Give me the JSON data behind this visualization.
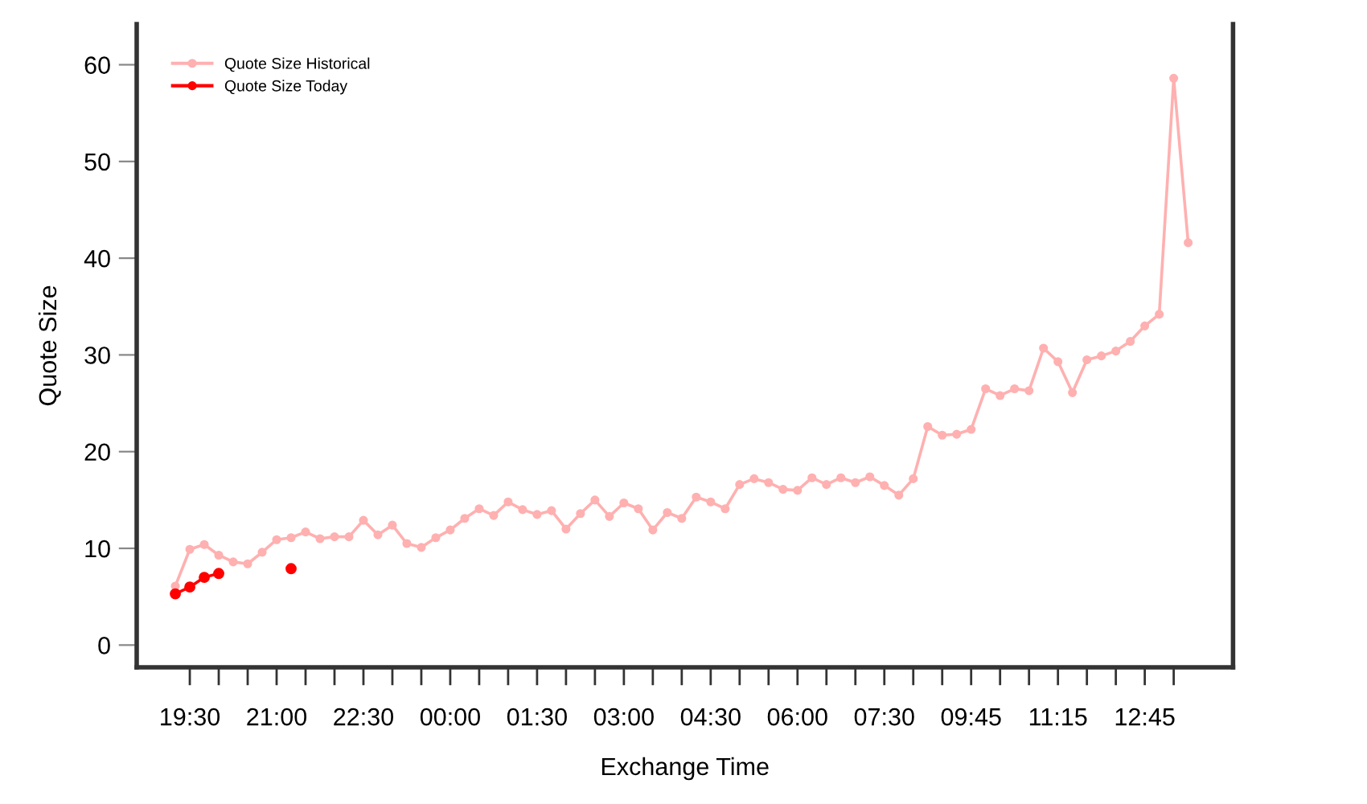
{
  "chart_data": {
    "type": "line",
    "xlabel": "Exchange Time",
    "ylabel": "Quote Size",
    "categories": [
      null,
      "19:30",
      null,
      null,
      null,
      null,
      null,
      "21:00",
      null,
      null,
      null,
      null,
      null,
      "22:30",
      null,
      null,
      null,
      null,
      null,
      "00:00",
      null,
      null,
      null,
      null,
      null,
      "01:30",
      null,
      null,
      null,
      null,
      null,
      "03:00",
      null,
      null,
      null,
      null,
      null,
      "04:30",
      null,
      null,
      null,
      null,
      null,
      "06:00",
      null,
      null,
      null,
      null,
      null,
      "07:30",
      null,
      null,
      null,
      null,
      null,
      "09:45",
      null,
      null,
      null,
      null,
      null,
      "11:15",
      null,
      null,
      null,
      null,
      null,
      "12:45",
      null,
      null,
      null
    ],
    "series": [
      {
        "name": "Quote Size Historical",
        "color": "#ffb0b0",
        "values": [
          6.1,
          9.9,
          10.4,
          9.3,
          8.6,
          8.4,
          9.6,
          10.9,
          11.1,
          11.7,
          11.0,
          11.2,
          11.2,
          12.9,
          11.4,
          12.4,
          10.5,
          10.1,
          11.1,
          11.9,
          13.1,
          14.1,
          13.4,
          14.8,
          14.0,
          13.5,
          13.9,
          12.0,
          13.6,
          15.0,
          13.3,
          14.7,
          14.1,
          11.9,
          13.7,
          13.1,
          15.3,
          14.8,
          14.1,
          16.6,
          17.2,
          16.8,
          16.1,
          16.0,
          17.3,
          16.6,
          17.3,
          16.8,
          17.4,
          16.5,
          15.5,
          17.2,
          22.6,
          21.7,
          21.8,
          22.3,
          26.5,
          25.8,
          26.5,
          26.3,
          30.7,
          29.3,
          26.1,
          29.5,
          29.9,
          30.4,
          31.4,
          33.0,
          34.2,
          58.6,
          41.6
        ]
      },
      {
        "name": "Quote Size Today",
        "color": "#ff0000",
        "values": [
          5.3,
          6.0,
          7.0,
          7.4,
          null,
          null,
          null,
          null,
          7.9,
          null,
          null,
          null,
          null,
          null,
          null,
          null,
          null,
          null,
          null,
          null,
          null,
          null,
          null,
          null,
          null,
          null,
          null,
          null,
          null,
          null,
          null,
          null,
          null,
          null,
          null,
          null,
          null,
          null,
          null,
          null,
          null,
          null,
          null,
          null,
          null,
          null,
          null,
          null,
          null,
          null,
          null,
          null,
          null,
          null,
          null,
          null,
          null,
          null,
          null,
          null,
          null,
          null,
          null,
          null,
          null,
          null,
          null,
          null,
          null,
          null,
          null
        ]
      }
    ],
    "ylim": [
      -2.3,
      64.2
    ],
    "yticks": [
      0,
      10,
      20,
      30,
      40,
      50,
      60
    ],
    "grid": false,
    "legend": "top left",
    "marker": "circle",
    "line_style": "solid"
  }
}
